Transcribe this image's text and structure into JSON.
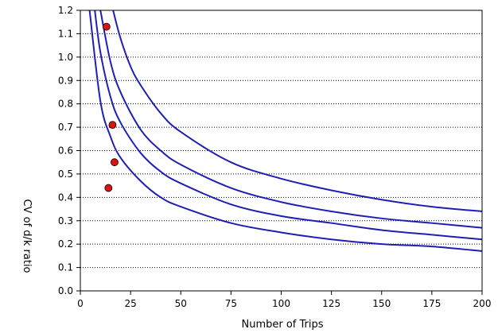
{
  "chart_data": {
    "type": "line",
    "title": "",
    "xlabel": "Number of Trips",
    "ylabel": "CV of d/k ratio",
    "xlim": [
      0,
      200
    ],
    "ylim": [
      0.0,
      1.2
    ],
    "x_ticks": [
      "0",
      "25",
      "50",
      "75",
      "100",
      "125",
      "150",
      "175",
      "200"
    ],
    "y_ticks": [
      "0.0",
      "0.1",
      "0.2",
      "0.3",
      "0.4",
      "0.5",
      "0.6",
      "0.7",
      "0.8",
      "0.9",
      "1.0",
      "1.1",
      "1.2"
    ],
    "grid": "horizontal-dotted",
    "line_color": "#1f1fb4",
    "marker_color": "#dd1111",
    "series": [
      {
        "x": [
          4.6,
          10,
          15,
          20,
          30,
          40,
          50,
          75,
          100,
          125,
          150,
          175,
          200
        ],
        "y": [
          1.2,
          0.81,
          0.66,
          0.57,
          0.47,
          0.4,
          0.36,
          0.29,
          0.25,
          0.22,
          0.2,
          0.19,
          0.17
        ]
      },
      {
        "x": [
          7.2,
          10,
          15,
          20,
          30,
          40,
          50,
          75,
          100,
          125,
          150,
          175,
          200
        ],
        "y": [
          1.2,
          1.02,
          0.83,
          0.72,
          0.59,
          0.51,
          0.46,
          0.37,
          0.32,
          0.29,
          0.26,
          0.24,
          0.22
        ]
      },
      {
        "x": [
          10,
          15,
          20,
          30,
          40,
          50,
          75,
          100,
          125,
          150,
          175,
          200
        ],
        "y": [
          1.2,
          0.98,
          0.85,
          0.69,
          0.6,
          0.54,
          0.44,
          0.38,
          0.34,
          0.31,
          0.29,
          0.27
        ]
      },
      {
        "x": [
          16.3,
          20,
          25,
          30,
          40,
          50,
          75,
          100,
          125,
          150,
          175,
          200
        ],
        "y": [
          1.2,
          1.08,
          0.96,
          0.88,
          0.76,
          0.68,
          0.55,
          0.48,
          0.43,
          0.39,
          0.36,
          0.34
        ]
      }
    ],
    "markers": [
      {
        "x": 14,
        "y": 0.44
      },
      {
        "x": 17,
        "y": 0.55
      },
      {
        "x": 16,
        "y": 0.71
      },
      {
        "x": 13,
        "y": 1.13
      }
    ]
  }
}
